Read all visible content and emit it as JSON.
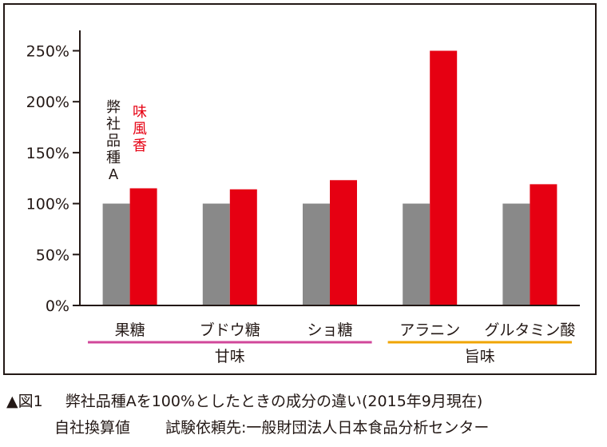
{
  "chart_data": {
    "type": "bar",
    "categories": [
      "果糖",
      "ブドウ糖",
      "ショ糖",
      "アラニン",
      "グルタミン酸"
    ],
    "series": [
      {
        "name": "弊社品種A",
        "color": "#898989",
        "values": [
          100,
          100,
          100,
          100,
          100
        ]
      },
      {
        "name": "味風香",
        "color": "#e60012",
        "values": [
          115,
          114,
          123,
          250,
          119
        ]
      }
    ],
    "ylim": [
      0,
      270
    ],
    "yticks": [
      0,
      50,
      100,
      150,
      200,
      250
    ],
    "ytick_labels": [
      "0%",
      "50%",
      "100%",
      "150%",
      "200%",
      "250%"
    ],
    "grid": false,
    "legend_placement": "inside-left-vertical",
    "groups": [
      {
        "label": "甘味",
        "categories": [
          "果糖",
          "ブドウ糖",
          "ショ糖"
        ],
        "color": "#d1479a"
      },
      {
        "label": "旨味",
        "categories": [
          "アラニン",
          "グルタミン酸"
        ],
        "color": "#f0a500"
      }
    ]
  },
  "caption": {
    "line1_marker": "▲図1",
    "line1_text": "弊社品種Aを100%としたときの成分の違い(2015年9月現在)",
    "line2_left": "自社換算値",
    "line2_right": "試験依頼先:一般財団法人日本食品分析センター"
  }
}
